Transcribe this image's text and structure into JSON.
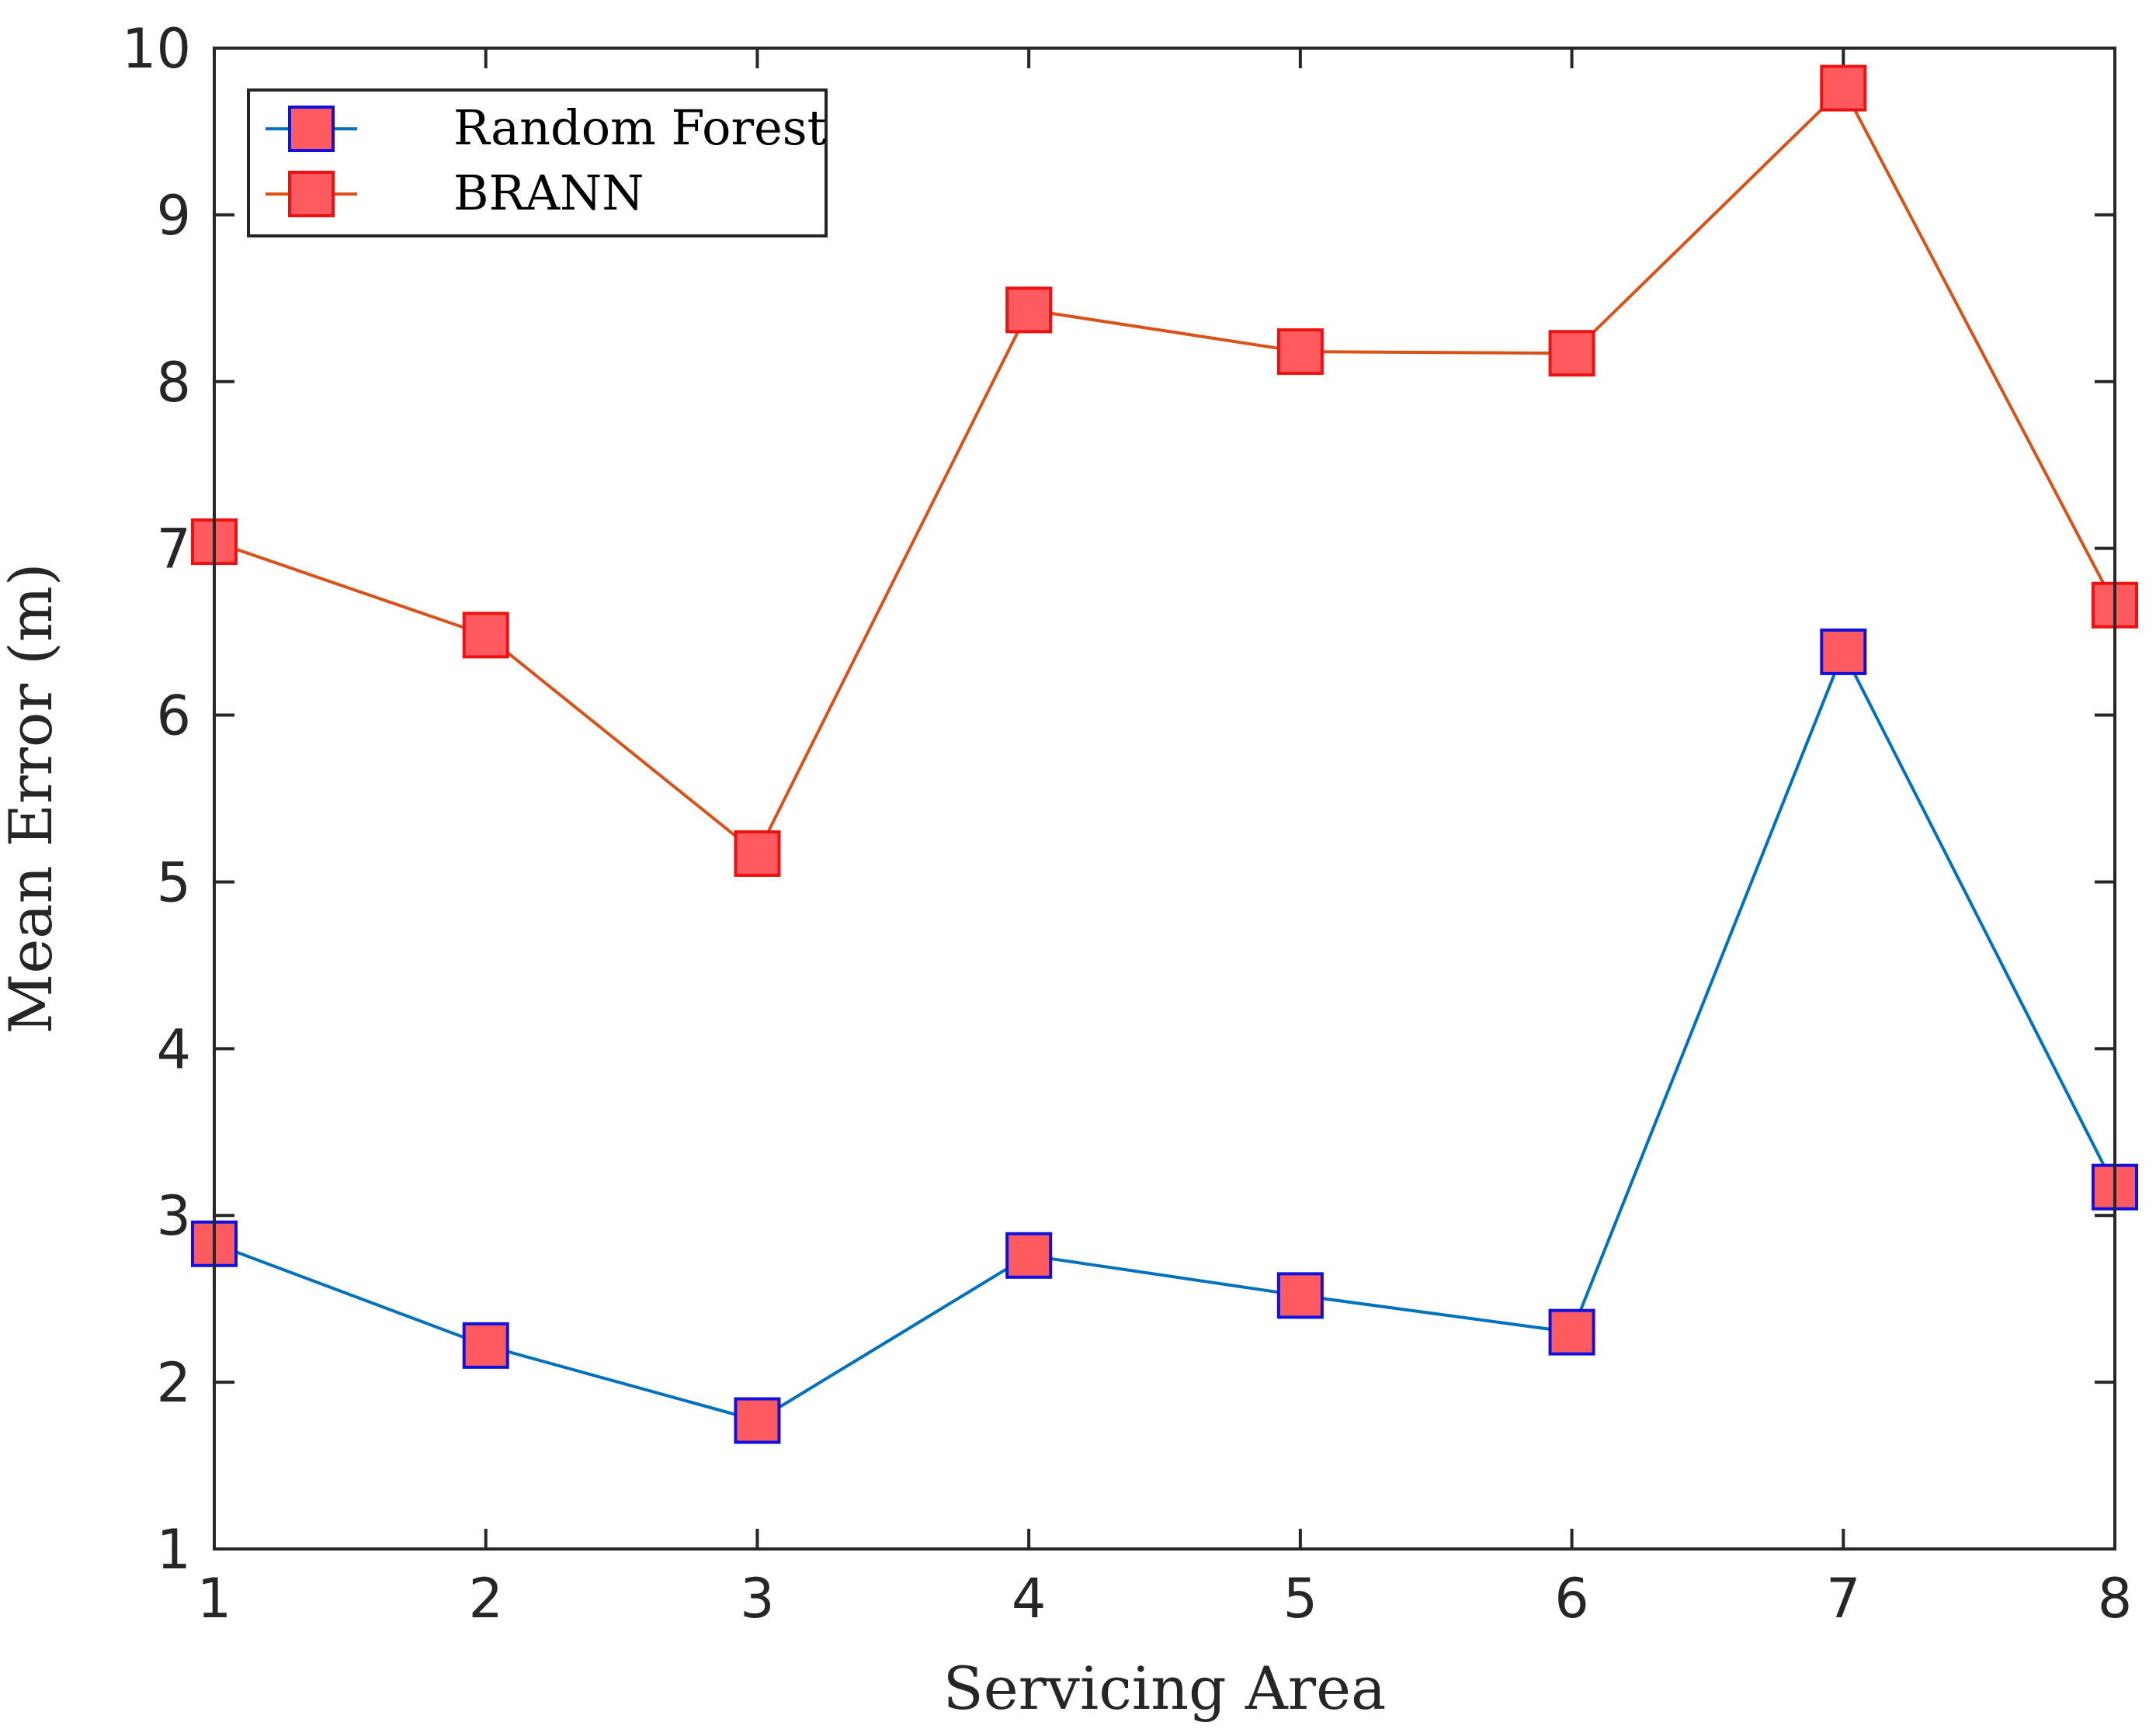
{
  "chart_data": {
    "type": "line",
    "title": "",
    "xlabel": "Servicing Area",
    "ylabel": "Mean Error (m)",
    "x": [
      1,
      2,
      3,
      4,
      5,
      6,
      7,
      8
    ],
    "xlim": [
      1,
      8
    ],
    "ylim": [
      1,
      10
    ],
    "xticks": [
      "1",
      "2",
      "3",
      "4",
      "5",
      "6",
      "7",
      "8"
    ],
    "yticks": [
      "1",
      "2",
      "3",
      "4",
      "5",
      "6",
      "7",
      "8",
      "9",
      "10"
    ],
    "grid": false,
    "legend_location": "top-left",
    "series": [
      {
        "name": "Random Forest",
        "values": [
          2.83,
          2.22,
          1.77,
          2.76,
          2.52,
          2.3,
          6.38,
          3.17
        ],
        "line_color": "#0072BD",
        "marker_edge_color": "#1010E0"
      },
      {
        "name": "BRANN",
        "values": [
          7.04,
          6.48,
          5.17,
          8.43,
          8.18,
          8.17,
          9.76,
          6.66
        ],
        "line_color": "#D95319",
        "marker_edge_color": "#F01010"
      }
    ],
    "marker_face_color": "#FF5A5F"
  }
}
